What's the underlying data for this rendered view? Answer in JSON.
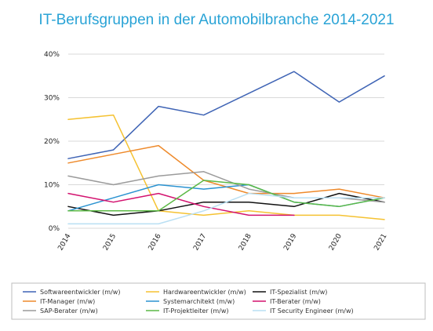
{
  "chart_data": {
    "type": "line",
    "title": "IT-Berufsgruppen in der Automobilbranche 2014-2021",
    "xlabel": "",
    "ylabel": "",
    "x": [
      "2014",
      "2015",
      "2016",
      "2017",
      "2018",
      "2019",
      "2020",
      "2021"
    ],
    "ylim": [
      0,
      40
    ],
    "yticks": [
      "0%",
      "10%",
      "20%",
      "30%",
      "40%"
    ],
    "grid": true,
    "legend_position": "bottom",
    "series": [
      {
        "name": "Softwareentwickler (m/w)",
        "color": "#3f64b5",
        "values": [
          16,
          18,
          28,
          26,
          31,
          36,
          29,
          35
        ]
      },
      {
        "name": "Hardwareentwickler (m/w)",
        "color": "#f5c232",
        "values": [
          25,
          26,
          4,
          3,
          4,
          3,
          3,
          2
        ]
      },
      {
        "name": "IT-Spezialist (m/w)",
        "color": "#111111",
        "values": [
          5,
          3,
          4,
          6,
          6,
          5,
          8,
          6
        ]
      },
      {
        "name": "IT-Manager (m/w)",
        "color": "#ee8a2b",
        "values": [
          15,
          17,
          19,
          11,
          8,
          8,
          9,
          7
        ]
      },
      {
        "name": "Systemarchitekt (m/w)",
        "color": "#2b93d1",
        "values": [
          4,
          7,
          10,
          9,
          10,
          6,
          5,
          7
        ]
      },
      {
        "name": "IT-Berater (m/w)",
        "color": "#d3126f",
        "values": [
          8,
          6,
          8,
          5,
          3,
          3,
          null,
          null
        ]
      },
      {
        "name": "SAP-Berater (m/w)",
        "color": "#9b9b9b",
        "values": [
          12,
          10,
          12,
          13,
          9,
          7,
          7,
          6
        ]
      },
      {
        "name": "IT-Projektleiter (m/w)",
        "color": "#5cb946",
        "values": [
          4,
          4,
          4,
          11,
          10,
          6,
          5,
          7
        ]
      },
      {
        "name": "IT Security Engineer (m/w)",
        "color": "#b9dff3",
        "values": [
          1,
          1,
          1,
          4,
          8,
          7,
          7,
          7
        ]
      }
    ]
  }
}
